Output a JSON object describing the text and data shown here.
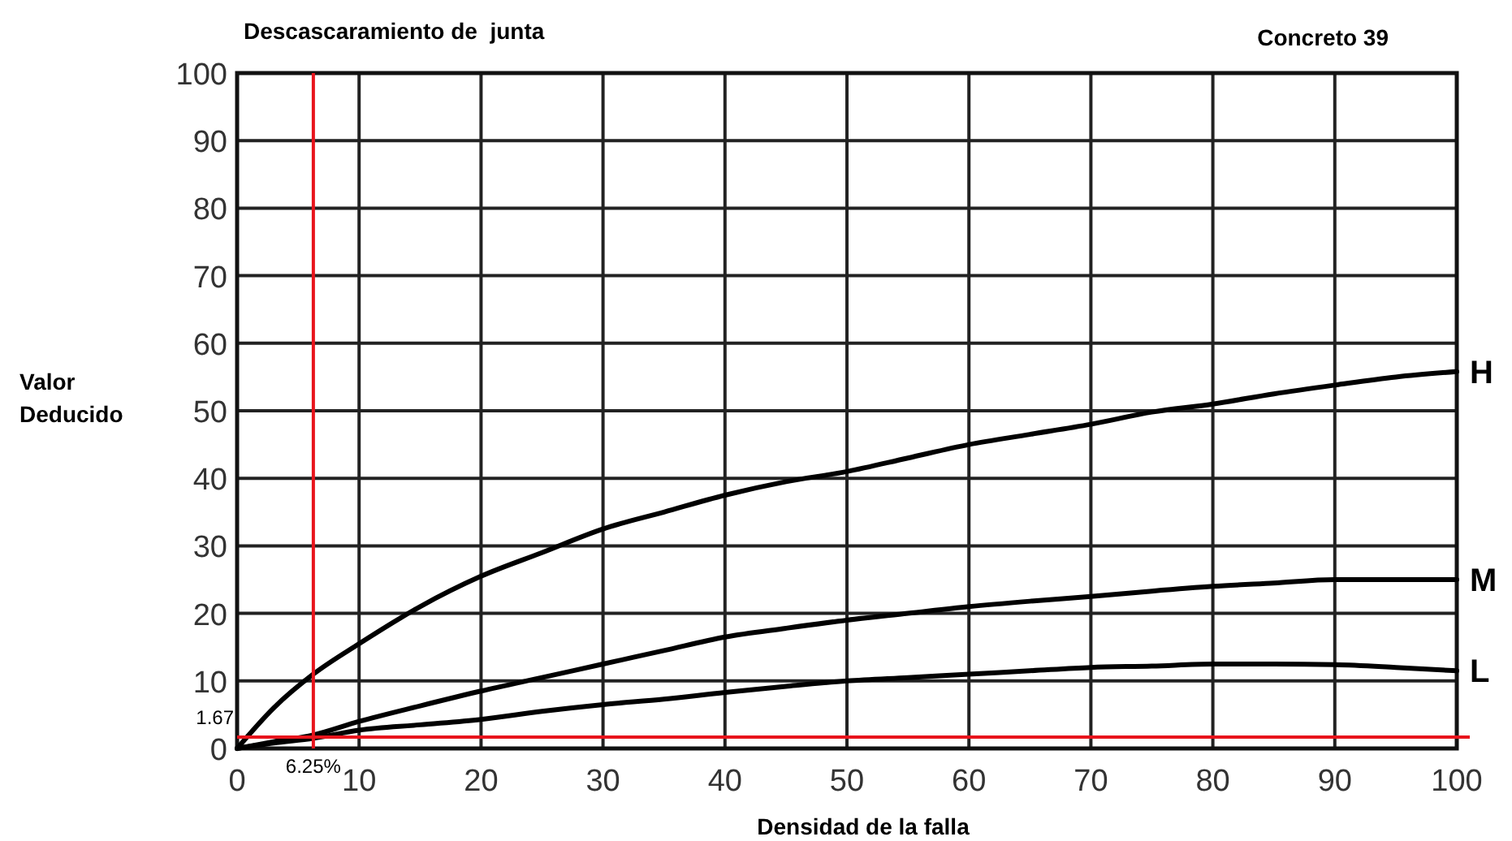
{
  "chart_data": {
    "type": "line",
    "title": "Descascaramiento de  junta",
    "subtitle": "Concreto 39",
    "xlabel": "Densidad de la falla",
    "ylabel": "Valor Deducido",
    "x": [
      0,
      3,
      6.25,
      10,
      15,
      20,
      25,
      30,
      35,
      40,
      45,
      50,
      55,
      60,
      65,
      70,
      75,
      80,
      85,
      90,
      95,
      100
    ],
    "series": [
      {
        "name": "H",
        "color": "#000000",
        "values": [
          0,
          6,
          11,
          15.5,
          21,
          25.5,
          29,
          32.5,
          35,
          37.5,
          39.5,
          41,
          43,
          45,
          46.5,
          48,
          49.8,
          51,
          52.5,
          53.8,
          55,
          55.8
        ]
      },
      {
        "name": "M",
        "color": "#000000",
        "values": [
          0,
          1,
          2,
          4,
          6.3,
          8.5,
          10.5,
          12.5,
          14.5,
          16.5,
          17.8,
          19,
          20,
          21,
          21.8,
          22.5,
          23.3,
          24,
          24.5,
          25,
          25,
          25
        ]
      },
      {
        "name": "L",
        "color": "#000000",
        "values": [
          0,
          0.8,
          1.5,
          2.7,
          3.5,
          4.3,
          5.5,
          6.5,
          7.3,
          8.3,
          9.2,
          10,
          10.5,
          11,
          11.5,
          12,
          12.2,
          12.5,
          12.5,
          12.4,
          12,
          11.5
        ]
      }
    ],
    "xlim": [
      0,
      100
    ],
    "xticks": [
      0,
      10,
      20,
      30,
      40,
      50,
      60,
      70,
      80,
      90,
      100
    ],
    "ylim": [
      0,
      100
    ],
    "yticks": [
      0,
      10,
      20,
      30,
      40,
      50,
      60,
      70,
      80,
      90,
      100
    ],
    "grid": true,
    "marker": "none",
    "line_style": "solid",
    "ref_lines": [
      {
        "axis": "x",
        "value": 6.25,
        "label": "6.25%",
        "color": "#e8141c"
      },
      {
        "axis": "y",
        "value": 1.67,
        "label": "1.67",
        "color": "#e8141c"
      }
    ]
  }
}
